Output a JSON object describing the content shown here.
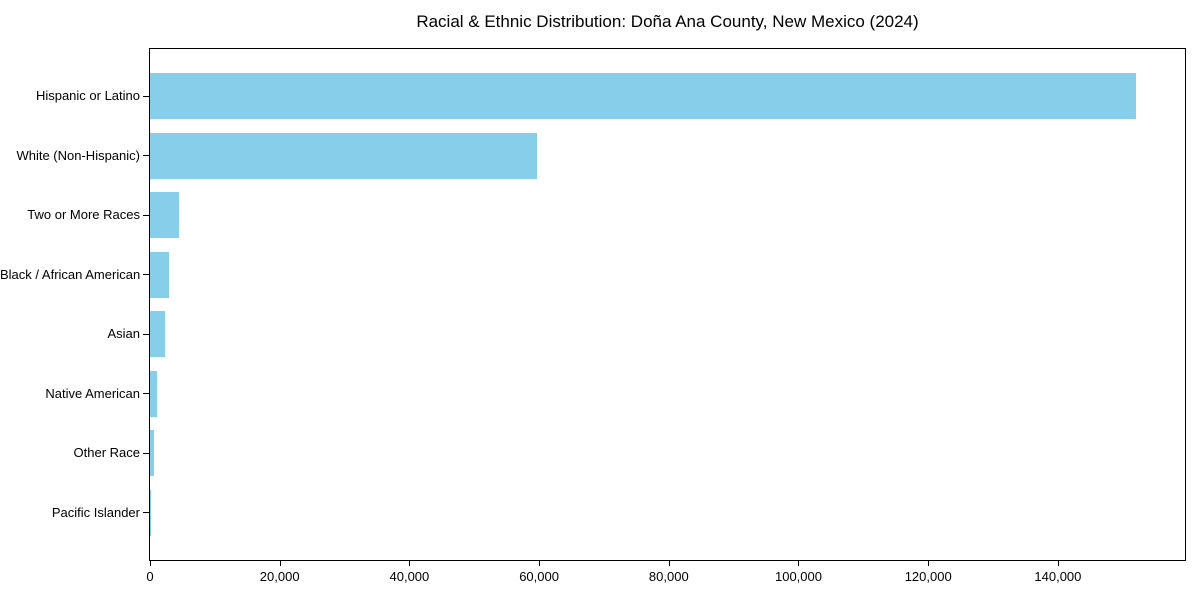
{
  "chart_data": {
    "type": "bar",
    "orientation": "horizontal",
    "title": "Racial & Ethnic Distribution: Doña Ana County, New Mexico (2024)",
    "xlabel": "",
    "ylabel": "",
    "categories": [
      "Hispanic or Latino",
      "White (Non-Hispanic)",
      "Two or More Races",
      "Black / African American",
      "Asian",
      "Native American",
      "Other Race",
      "Pacific Islander"
    ],
    "values": [
      152000,
      59700,
      4500,
      3000,
      2350,
      1080,
      580,
      100
    ],
    "xlim": [
      0,
      159600
    ],
    "xticks": [
      0,
      20000,
      40000,
      60000,
      80000,
      100000,
      120000,
      140000
    ],
    "xtick_labels": [
      "0",
      "20,000",
      "40,000",
      "60,000",
      "80,000",
      "100,000",
      "120,000",
      "140,000"
    ],
    "grid": false,
    "legend": null,
    "bar_color": "#87CEEB"
  },
  "colors": {
    "bar": "#87CEEB",
    "axis": "#000000",
    "text": "#000000",
    "background": "#ffffff"
  }
}
